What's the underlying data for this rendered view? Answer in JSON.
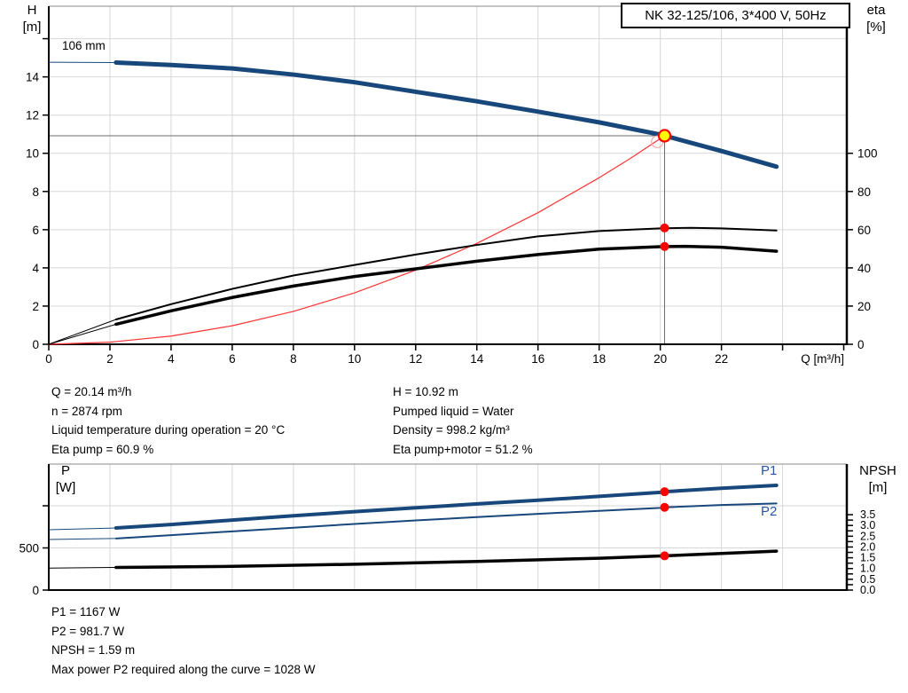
{
  "axes_labels": {
    "h": "H",
    "h_unit": "[m]",
    "eta": "eta",
    "eta_unit": "[%]",
    "p": "P",
    "p_unit": "[W]",
    "npsh": "NPSH",
    "npsh_unit": "[m]",
    "q": "Q [m³/h]"
  },
  "operating_point": {
    "left": [
      "Q = 20.14 m³/h",
      "n = 2874 rpm",
      "Liquid temperature during operation = 20 °C",
      "Eta pump = 60.9 %"
    ],
    "right": [
      "H = 10.92 m",
      "Pumped liquid = Water",
      "Density = 998.2 kg/m³",
      "Eta pump+motor = 51.2 %"
    ]
  },
  "power_info": [
    "P1 = 1167 W",
    "P2 = 981.7 W",
    "NPSH = 1.59 m",
    "Max power P2 required along the curve = 1028 W"
  ],
  "colors": {
    "curve_blue": "#18487b",
    "label_blue": "#2456a8",
    "red": "#ff0000",
    "system_red": "#ff3333",
    "yellow": "#ffff00",
    "grid": "#d7d7d7",
    "duty_line": "#6b6b6b"
  },
  "chart_data": [
    {
      "type": "line",
      "title": "NK 32-125/106, 3*400 V, 50Hz",
      "xlabel": "Q [m³/h]",
      "ylabel": "H [m]",
      "y2label": "eta [%]",
      "xlim": [
        0,
        26.1
      ],
      "ylim": [
        0,
        17.7
      ],
      "y2lim": [
        0,
        177
      ],
      "x_grid": [
        2,
        4,
        6,
        8,
        10,
        12,
        14,
        16,
        18,
        20,
        22,
        24
      ],
      "y_grid": [
        2,
        4,
        6,
        8,
        10,
        12,
        14,
        16
      ],
      "x_ticks": {
        "labeled": [
          0,
          2,
          4,
          6,
          8,
          10,
          12,
          14,
          16,
          18,
          20,
          22
        ],
        "minor": [
          24,
          26
        ]
      },
      "y_ticks": {
        "labeled": [
          0,
          2,
          4,
          6,
          8,
          10,
          12,
          14
        ],
        "minor": [
          16
        ]
      },
      "y2_ticks": {
        "labeled": [
          0,
          20,
          40,
          60,
          80,
          100
        ],
        "minor": []
      },
      "series": [
        {
          "name": "head-curve-106mm",
          "label": "106 mm",
          "axis": "y",
          "color": "#18487b",
          "width": 5,
          "lead": [
            [
              0,
              14.77
            ],
            [
              2.2,
              14.75
            ]
          ],
          "points": [
            [
              2.2,
              14.75
            ],
            [
              4,
              14.62
            ],
            [
              6,
              14.44
            ],
            [
              8,
              14.12
            ],
            [
              10,
              13.72
            ],
            [
              12,
              13.22
            ],
            [
              14,
              12.72
            ],
            [
              16,
              12.18
            ],
            [
              18,
              11.62
            ],
            [
              20,
              10.98
            ],
            [
              20.14,
              10.92
            ],
            [
              22,
              10.12
            ],
            [
              23.8,
              9.3
            ]
          ]
        },
        {
          "name": "system-curve",
          "axis": "y",
          "color": "#ff3333",
          "width": 1.2,
          "points": [
            [
              0,
              0
            ],
            [
              2,
              0.11
            ],
            [
              4,
              0.43
            ],
            [
              6,
              0.97
            ],
            [
              8,
              1.72
            ],
            [
              10,
              2.69
            ],
            [
              12,
              3.88
            ],
            [
              14,
              5.28
            ],
            [
              16,
              6.89
            ],
            [
              18,
              8.72
            ],
            [
              19,
              9.71
            ],
            [
              20.14,
              10.92
            ]
          ]
        },
        {
          "name": "eta-pump-curve",
          "axis": "y2",
          "color": "#000000",
          "width": 2,
          "lead": [
            [
              0,
              0
            ],
            [
              2.2,
              13
            ]
          ],
          "points": [
            [
              2.2,
              13
            ],
            [
              4,
              21
            ],
            [
              6,
              29
            ],
            [
              8,
              36
            ],
            [
              10,
              41.5
            ],
            [
              12,
              47
            ],
            [
              14,
              52
            ],
            [
              16,
              56.5
            ],
            [
              18,
              59.3
            ],
            [
              20,
              60.7
            ],
            [
              21,
              61
            ],
            [
              22,
              60.7
            ],
            [
              23.8,
              59.6
            ]
          ]
        },
        {
          "name": "eta-pump-motor-curve",
          "axis": "y2",
          "color": "#000000",
          "width": 3.5,
          "lead": [
            [
              0,
              0
            ],
            [
              2.2,
              10.5
            ]
          ],
          "points": [
            [
              2.2,
              10.5
            ],
            [
              4,
              17.5
            ],
            [
              6,
              24.5
            ],
            [
              8,
              30.5
            ],
            [
              10,
              35.5
            ],
            [
              12,
              39.5
            ],
            [
              14,
              43.5
            ],
            [
              16,
              47
            ],
            [
              18,
              49.8
            ],
            [
              20,
              51.1
            ],
            [
              20.8,
              51.3
            ],
            [
              22,
              50.8
            ],
            [
              23.8,
              48.7
            ]
          ]
        }
      ],
      "duty_point": {
        "q": 20.14,
        "h": 10.92,
        "eta_pump": 60.9,
        "eta_pump_motor": 51.2
      },
      "crosshair": {
        "q": 20.14,
        "v": 10.92
      },
      "markers": [
        {
          "name": "system-intersection-marker",
          "type": "open",
          "axis": "y",
          "q": 19.9,
          "v": 10.6
        },
        {
          "name": "duty-point-eta-pump",
          "type": "dot",
          "axis": "y2",
          "q": 20.14,
          "v": 60.9
        },
        {
          "name": "duty-point-eta-pump-motor",
          "type": "dot",
          "axis": "y2",
          "q": 20.14,
          "v": 51.2
        },
        {
          "name": "duty-point-head",
          "type": "duty",
          "axis": "y",
          "q": 20.14,
          "v": 10.92
        }
      ]
    },
    {
      "type": "line",
      "title": "",
      "ylabel": "P [W]",
      "y2label": "NPSH [m]",
      "xlim": [
        0,
        26.1
      ],
      "ylim": [
        0,
        1495
      ],
      "y2lim": [
        0,
        5.85
      ],
      "x_grid": [
        2,
        4,
        6,
        8,
        10,
        12,
        14,
        16,
        18,
        20,
        22,
        24
      ],
      "y_grid": [
        500,
        1000
      ],
      "x_ticks": {
        "labeled": [],
        "minor": []
      },
      "y_ticks": {
        "labeled": [
          0,
          500
        ],
        "minor": [
          1000
        ]
      },
      "y2_ticks": {
        "labeled": [
          0,
          0.5,
          1,
          1.5,
          2,
          2.5,
          3,
          3.5
        ],
        "labels": [
          "0.0",
          "0.5",
          "1.0",
          "1.5",
          "2.0",
          "2.5",
          "3.0",
          "3.5"
        ],
        "minor": [
          0.25,
          0.75,
          1.25,
          1.75,
          2.25,
          2.75,
          3.25
        ],
        "small": true
      },
      "series": [
        {
          "name": "p1-curve",
          "label": "P1",
          "axis": "y",
          "color": "#18487b",
          "width": 4,
          "lead": [
            [
              0,
              716
            ],
            [
              2.2,
              737
            ]
          ],
          "points": [
            [
              2.2,
              737
            ],
            [
              4,
              778
            ],
            [
              6,
              830
            ],
            [
              8,
              882
            ],
            [
              10,
              930
            ],
            [
              12,
              976
            ],
            [
              14,
              1022
            ],
            [
              16,
              1066
            ],
            [
              18,
              1112
            ],
            [
              20,
              1160
            ],
            [
              20.14,
              1167
            ],
            [
              22,
              1208
            ],
            [
              23.8,
              1242
            ]
          ]
        },
        {
          "name": "p2-curve",
          "label": "P2",
          "axis": "y",
          "color": "#18487b",
          "width": 2,
          "lead": [
            [
              0,
              600
            ],
            [
              2.2,
              612
            ]
          ],
          "points": [
            [
              2.2,
              612
            ],
            [
              4,
              652
            ],
            [
              6,
              696
            ],
            [
              8,
              740
            ],
            [
              10,
              784
            ],
            [
              12,
              826
            ],
            [
              14,
              866
            ],
            [
              16,
              904
            ],
            [
              18,
              940
            ],
            [
              20,
              975
            ],
            [
              20.14,
              981.7
            ],
            [
              22,
              1010
            ],
            [
              23.8,
              1028
            ]
          ]
        },
        {
          "name": "npsh-curve",
          "axis": "y2",
          "color": "#000000",
          "width": 3.5,
          "lead": [
            [
              0,
              1.02
            ],
            [
              2.2,
              1.05
            ]
          ],
          "points": [
            [
              2.2,
              1.05
            ],
            [
              6,
              1.1
            ],
            [
              10,
              1.2
            ],
            [
              14,
              1.33
            ],
            [
              18,
              1.48
            ],
            [
              20.14,
              1.59
            ],
            [
              22,
              1.7
            ],
            [
              23.8,
              1.81
            ]
          ]
        }
      ],
      "markers": [
        {
          "name": "duty-point-p1",
          "type": "dot",
          "axis": "y",
          "q": 20.14,
          "v": 1167
        },
        {
          "name": "duty-point-p2",
          "type": "dot",
          "axis": "y",
          "q": 20.14,
          "v": 981.7
        },
        {
          "name": "duty-point-npsh",
          "type": "dot",
          "axis": "y2",
          "q": 20.14,
          "v": 1.59
        }
      ]
    }
  ]
}
